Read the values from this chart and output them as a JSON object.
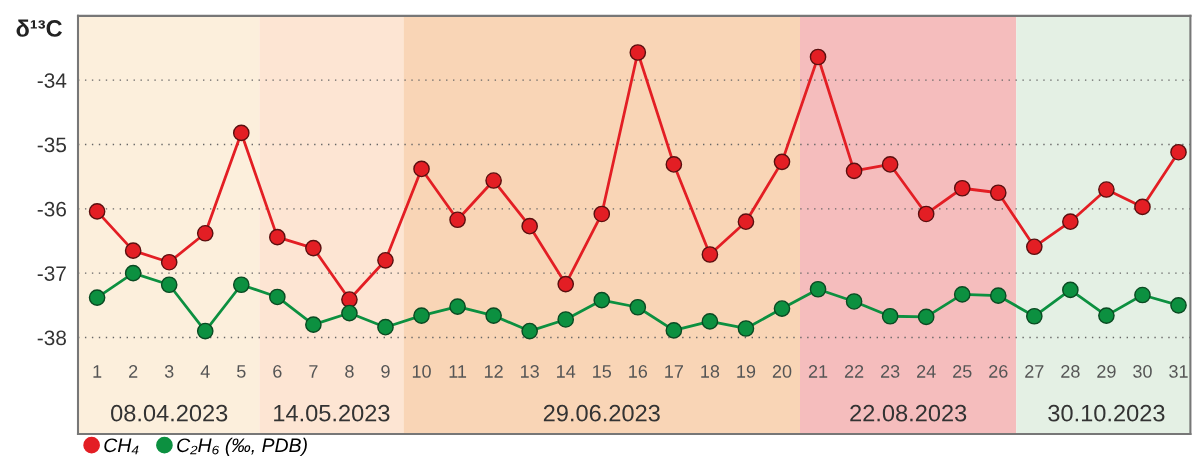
{
  "chart_data": {
    "type": "line",
    "ylabel": "δ¹³C",
    "categories": [
      "1",
      "2",
      "3",
      "4",
      "5",
      "6",
      "7",
      "8",
      "9",
      "10",
      "11",
      "12",
      "13",
      "14",
      "15",
      "16",
      "17",
      "18",
      "19",
      "20",
      "21",
      "22",
      "23",
      "24",
      "25",
      "26",
      "27",
      "28",
      "29",
      "30",
      "31"
    ],
    "series": [
      {
        "name": "CH₄",
        "color": "#e31e24",
        "values": [
          -36.04,
          -36.65,
          -36.83,
          -36.38,
          -34.82,
          -36.44,
          -36.61,
          -37.41,
          -36.8,
          -35.38,
          -36.17,
          -35.56,
          -36.27,
          -37.17,
          -36.08,
          -33.57,
          -35.31,
          -36.71,
          -36.2,
          -35.27,
          -33.64,
          -35.41,
          -35.31,
          -36.08,
          -35.68,
          -35.75,
          -36.59,
          -36.2,
          -35.7,
          -35.97,
          -35.12
        ]
      },
      {
        "name": "C₂H₆ (‰, PDB)",
        "color": "#0c9040",
        "values": [
          -37.38,
          -37.0,
          -37.18,
          -37.9,
          -37.18,
          -37.37,
          -37.8,
          -37.62,
          -37.84,
          -37.66,
          -37.52,
          -37.66,
          -37.9,
          -37.72,
          -37.42,
          -37.53,
          -37.89,
          -37.75,
          -37.86,
          -37.55,
          -37.25,
          -37.44,
          -37.67,
          -37.68,
          -37.33,
          -37.35,
          -37.67,
          -37.26,
          -37.66,
          -37.34,
          -37.5
        ]
      }
    ],
    "ylim": [
      -39.5,
      -33.0
    ],
    "yticks": [
      -34,
      -35,
      -36,
      -37,
      -38
    ],
    "bands": [
      {
        "axis": "x",
        "from": "1",
        "to": "5",
        "label": "08.04.2023",
        "color": "#fcefdc"
      },
      {
        "axis": "x",
        "from": "6",
        "to": "9",
        "label": "14.05.2023",
        "color": "#fde5d3"
      },
      {
        "axis": "x",
        "from": "10",
        "to": "20",
        "label": "29.06.2023",
        "color": "#f9d5b6"
      },
      {
        "axis": "x",
        "from": "21",
        "to": "26",
        "label": "22.08.2023",
        "color": "#f5bdbd"
      },
      {
        "axis": "x",
        "from": "27",
        "to": "31",
        "label": "30.10.2023",
        "color": "#e4f0e4"
      }
    ],
    "grid": "y",
    "legend": "bottom left",
    "marker": "circle",
    "line_style": "solid"
  }
}
